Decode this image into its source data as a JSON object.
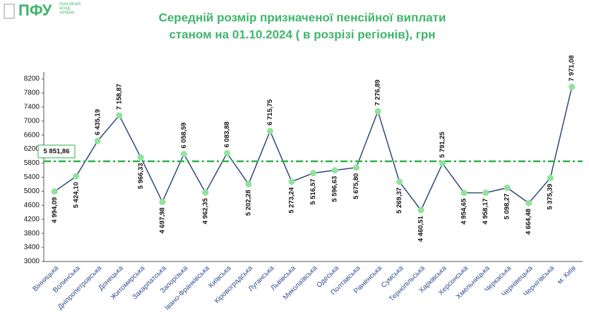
{
  "logo": {
    "mark": "ПФУ",
    "lines": [
      "ПЕНСІЙНИЙ",
      "ФОНД",
      "УКРАЇНИ"
    ]
  },
  "chart_data": {
    "type": "line",
    "title": "Середній розмір призначеної пенсійної виплати",
    "subtitle": "станом на 01.10.2024 ( в розрізі регіонів), грн",
    "categories": [
      "Вінницька",
      "Волинська",
      "Дніпропетровська",
      "Донецька",
      "Житомирська",
      "Закарпатська",
      "Запорізька",
      "Івано-Франківська",
      "Київська",
      "Кіровоградська",
      "Луганська",
      "Львівська",
      "Миколаївська",
      "Одеська",
      "Полтавська",
      "Рівненська",
      "Сумська",
      "Тернопільська",
      "Харківська",
      "Херсонська",
      "Хмельницька",
      "Черкаська",
      "Чернівецька",
      "Чернігівська",
      "м. Київ"
    ],
    "values": [
      4994.09,
      5424.1,
      6435.19,
      7158.87,
      5966.33,
      4697.98,
      6058.59,
      4962.35,
      6083.88,
      5202.28,
      6715.75,
      5273.24,
      5516.57,
      5596.63,
      5675.8,
      7276.89,
      5269.37,
      4460.51,
      5791.25,
      4954.65,
      4958.17,
      5098.27,
      4664.48,
      5375.39,
      7971.08
    ],
    "value_labels": [
      "4 994,09",
      "5 424,10",
      "6 435,19",
      "7 158,87",
      "5 966,33",
      "4 697,98",
      "6 058,59",
      "4 962,35",
      "6 083,88",
      "5 202,28",
      "6 715,75",
      "5 273,24",
      "5 516,57",
      "5 596,63",
      "5 675,80",
      "7 276,89",
      "5 269,37",
      "4 460,51",
      "5 791,25",
      "4 954,65",
      "4 958,17",
      "5 098,27",
      "4 664,48",
      "5 375,39",
      "7 971,08"
    ],
    "color": "#2e4a7a",
    "marker_color": "#90e39a",
    "average": {
      "value": 5851.86,
      "label": "5 851,86",
      "color": "#2db34a"
    },
    "ylim": [
      3000,
      8400
    ],
    "yticks": [
      3000,
      3400,
      3800,
      4200,
      4600,
      5000,
      5400,
      5800,
      6200,
      6600,
      7000,
      7400,
      7800,
      8200
    ]
  }
}
